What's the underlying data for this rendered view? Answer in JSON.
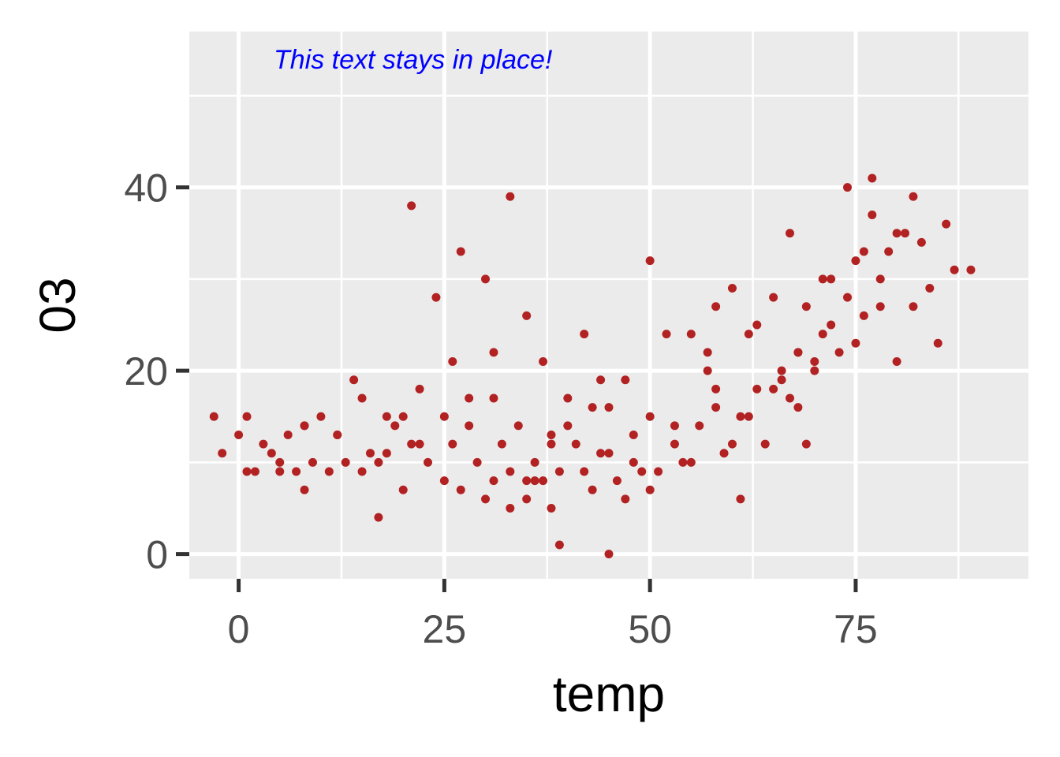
{
  "chart_data": {
    "type": "scatter",
    "title": "",
    "xlabel": "temp",
    "ylabel": "03",
    "xlim": [
      -6,
      96
    ],
    "ylim": [
      -2.7,
      57
    ],
    "xticks": [
      0,
      25,
      50,
      75
    ],
    "yticks": [
      0,
      20,
      40
    ],
    "x_tick_labels": [
      "0",
      "25",
      "50",
      "75"
    ],
    "y_tick_labels": [
      "0",
      "20",
      "40"
    ],
    "grid": true,
    "legend": "none",
    "point_color": "#b22222",
    "panel_background": "#ebebeb",
    "annotation": {
      "text": "This text stays in place!",
      "color": "#0000ff"
    },
    "x": [
      -3,
      -2,
      0,
      1,
      1,
      2,
      3,
      4,
      5,
      6,
      7,
      8,
      8,
      9,
      10,
      11,
      12,
      13,
      14,
      15,
      16,
      17,
      17,
      18,
      19,
      20,
      21,
      21,
      22,
      23,
      24,
      25,
      26,
      27,
      27,
      28,
      29,
      30,
      31,
      31,
      32,
      33,
      33,
      34,
      35,
      35,
      36,
      37,
      37,
      38,
      38,
      39,
      39,
      40,
      41,
      42,
      43,
      43,
      44,
      45,
      45,
      46,
      47,
      48,
      49,
      50,
      50,
      51,
      52,
      53,
      54,
      55,
      56,
      57,
      58,
      58,
      59,
      60,
      61,
      62,
      63,
      64,
      65,
      66,
      67,
      67,
      68,
      68,
      69,
      70,
      71,
      72,
      73,
      74,
      75,
      76,
      77,
      78,
      79,
      80,
      81,
      82,
      83,
      84,
      85,
      86,
      87,
      89,
      22,
      35,
      66,
      75,
      78,
      30,
      48,
      70,
      55,
      62,
      25,
      40,
      58,
      33,
      45,
      60,
      72,
      15,
      28,
      50,
      68,
      80,
      20,
      38,
      53,
      65,
      76,
      8,
      18,
      42,
      57,
      71,
      82,
      5,
      12,
      26,
      36,
      47,
      63,
      74,
      31,
      44,
      61,
      69,
      77
    ],
    "y": [
      15,
      11,
      13,
      9,
      15,
      9,
      12,
      11,
      9,
      13,
      9,
      14,
      7,
      10,
      15,
      9,
      13,
      10,
      19,
      17,
      11,
      10,
      4,
      15,
      14,
      7,
      12,
      38,
      18,
      10,
      28,
      15,
      12,
      7,
      33,
      14,
      10,
      30,
      8,
      22,
      12,
      9,
      39,
      14,
      6,
      26,
      10,
      8,
      21,
      5,
      13,
      9,
      1,
      17,
      12,
      24,
      7,
      16,
      19,
      0,
      11,
      8,
      19,
      13,
      9,
      15,
      32,
      9,
      24,
      12,
      10,
      24,
      14,
      20,
      16,
      27,
      11,
      29,
      15,
      24,
      18,
      12,
      28,
      20,
      17,
      35,
      22,
      16,
      27,
      21,
      30,
      25,
      22,
      28,
      32,
      26,
      37,
      30,
      33,
      21,
      35,
      27,
      34,
      29,
      23,
      36,
      31,
      31,
      12,
      8,
      19,
      23,
      27,
      6,
      10,
      20,
      10,
      15,
      8,
      14,
      18,
      5,
      16,
      12,
      30,
      9,
      17,
      7,
      22,
      35,
      15,
      12,
      14,
      18,
      33,
      14,
      11,
      9,
      22,
      24,
      39,
      10,
      13,
      21,
      8,
      6,
      25,
      40,
      17,
      11,
      6,
      12,
      41
    ]
  }
}
